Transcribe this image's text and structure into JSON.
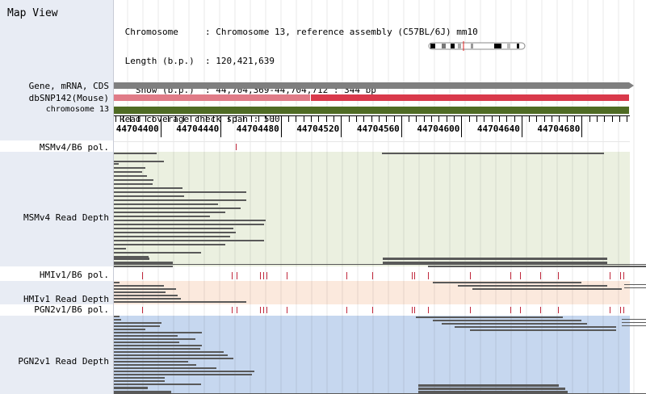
{
  "left_panel": {
    "title": "Map View"
  },
  "info": {
    "lines": [
      " Chromosome     : Chromosome 13, reference assembly (C57BL/6J) mm10",
      " Length (b.p.)  : 120,421,639",
      "   Show (b.p.)  : 44,704,369-44,704,712 : 344 bp",
      "Read coverage check span : 500"
    ]
  },
  "tracks": {
    "gene": "Gene, mRNA, CDS",
    "dbsnp": "dbSNP142(Mouse)",
    "chromosome": "chromosome 13",
    "msmv4_pol": "MSMv4/B6 pol.",
    "msmv4_depth": "MSMv4 Read Depth",
    "hmiv1_pol": "HMIv1/B6 pol.",
    "hmiv1_depth": "HMIv1 Read Depth",
    "pgn2v1_pol": "PGN2v1/B6 pol.",
    "pgn2v1_depth": "PGN2v1 Read Depth"
  },
  "ruler": {
    "start": 44704369,
    "end": 44704712,
    "ticks": [
      "44704400",
      "44704440",
      "44704480",
      "44704520",
      "44704560",
      "44704600",
      "44704640",
      "44704680"
    ]
  },
  "colors": {
    "gene_bar": "#7f7f7f",
    "dbsnp_light": "#e07b87",
    "dbsnp_dark": "#d9394b",
    "chromosome_bar": "#4f6b24",
    "msmv4_bg": "#ebf0e0",
    "hmiv1_bg": "#fbe9dd",
    "pgn2v1_bg": "#c6d7ef",
    "read": "#595959",
    "snp_tick": "#c0283c"
  }
}
